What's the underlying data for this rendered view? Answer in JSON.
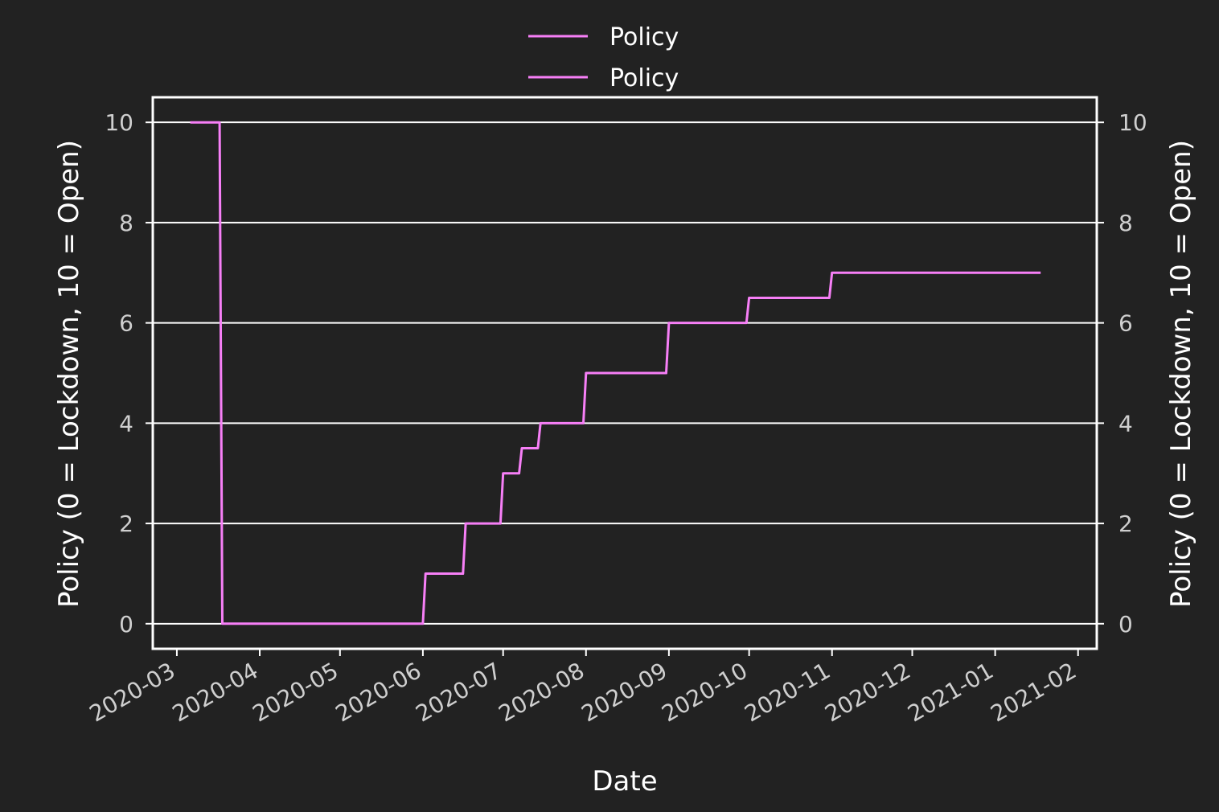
{
  "chart_data": {
    "type": "line",
    "xlabel": "Date",
    "ylabel_left": "Policy (0 = Lockdown, 10 = Open)",
    "ylabel_right": "Policy (0 = Lockdown, 10 = Open)",
    "xlim": [
      "2020-02-21",
      "2021-02-08"
    ],
    "ylim": [
      -0.5,
      10.5
    ],
    "grid": "horizontal",
    "legend_position": "top-center",
    "x_ticks": [
      "2020-03-01",
      "2020-04-01",
      "2020-05-01",
      "2020-06-01",
      "2020-07-01",
      "2020-08-01",
      "2020-09-01",
      "2020-10-01",
      "2020-11-01",
      "2020-12-01",
      "2021-01-01",
      "2021-02-01"
    ],
    "x_tick_labels": [
      "2020-03",
      "2020-04",
      "2020-05",
      "2020-06",
      "2020-07",
      "2020-08",
      "2020-09",
      "2020-10",
      "2020-11",
      "2020-12",
      "2021-01",
      "2021-02"
    ],
    "y_ticks": [
      0,
      2,
      4,
      6,
      8,
      10
    ],
    "y_tick_labels": [
      "0",
      "2",
      "4",
      "6",
      "8",
      "10"
    ],
    "legend": [
      "Policy",
      "Policy"
    ],
    "series": [
      {
        "name": "Policy",
        "color": "#f77ff7",
        "points": [
          [
            "2020-03-06",
            10
          ],
          [
            "2020-03-17",
            10
          ],
          [
            "2020-03-18",
            0
          ],
          [
            "2020-06-01",
            0
          ],
          [
            "2020-06-02",
            1
          ],
          [
            "2020-06-16",
            1
          ],
          [
            "2020-06-17",
            2
          ],
          [
            "2020-06-30",
            2
          ],
          [
            "2020-07-01",
            3
          ],
          [
            "2020-07-07",
            3
          ],
          [
            "2020-07-08",
            3.5
          ],
          [
            "2020-07-14",
            3.5
          ],
          [
            "2020-07-15",
            4
          ],
          [
            "2020-07-31",
            4
          ],
          [
            "2020-08-01",
            5
          ],
          [
            "2020-08-31",
            5
          ],
          [
            "2020-09-01",
            6
          ],
          [
            "2020-09-30",
            6
          ],
          [
            "2020-10-01",
            6.5
          ],
          [
            "2020-10-31",
            6.5
          ],
          [
            "2020-11-01",
            7
          ],
          [
            "2021-01-18",
            7
          ]
        ]
      }
    ]
  }
}
